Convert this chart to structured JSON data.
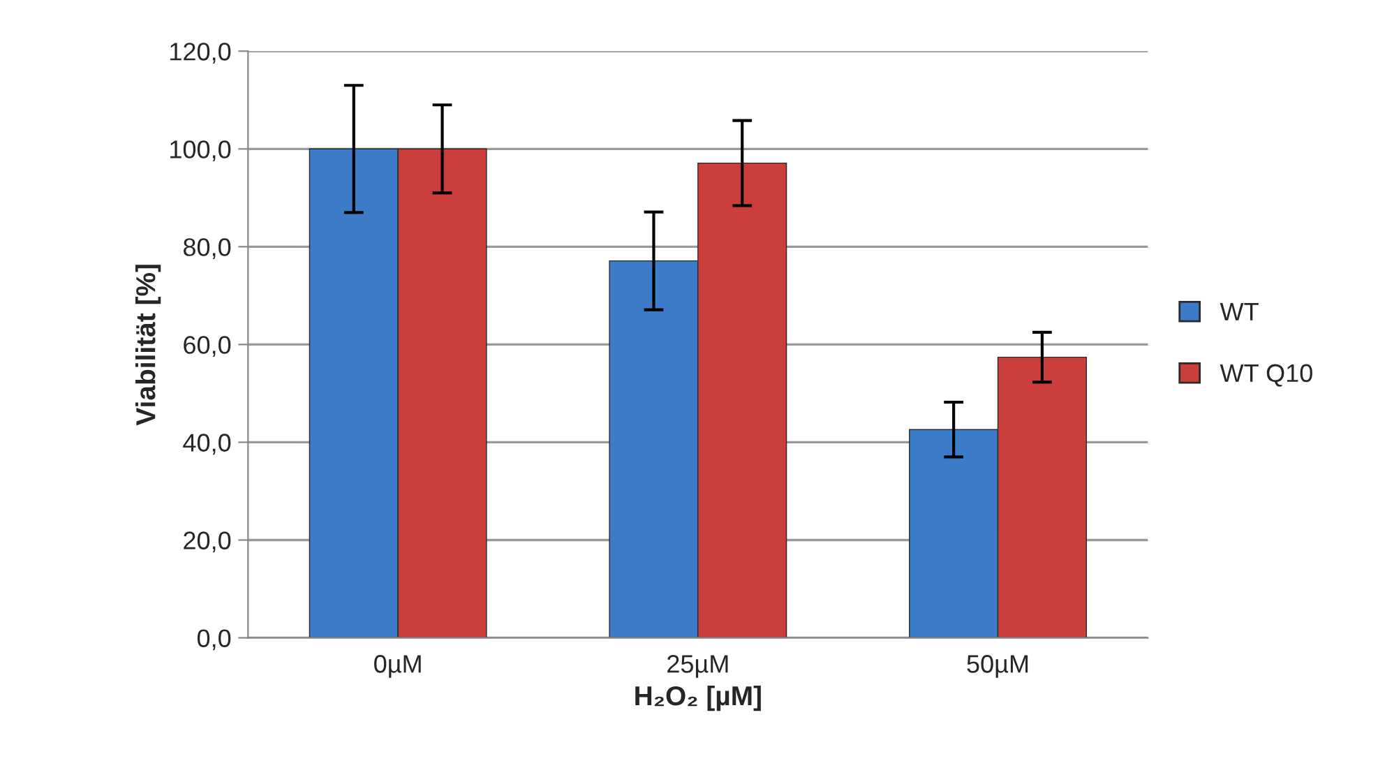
{
  "chart_data": {
    "type": "bar",
    "xlabel": "H₂O₂ [µM]",
    "ylabel": "Viabilität [%]",
    "categories": [
      "0µM",
      "25µM",
      "50µM"
    ],
    "series": [
      {
        "name": "WT",
        "color": "#3c7bc8",
        "values": [
          100.0,
          77.1,
          42.6
        ],
        "errors": [
          13.0,
          10.0,
          5.6
        ]
      },
      {
        "name": "WT Q10",
        "color": "#cc3e3b",
        "values": [
          100.0,
          97.1,
          57.4
        ],
        "errors": [
          9.0,
          8.7,
          5.1
        ]
      }
    ],
    "ylim": [
      0,
      120
    ],
    "yticks": [
      {
        "value": 0,
        "label": "0,0"
      },
      {
        "value": 20,
        "label": "20,0"
      },
      {
        "value": 40,
        "label": "40,0"
      },
      {
        "value": 60,
        "label": "60,0"
      },
      {
        "value": 80,
        "label": "80,0"
      },
      {
        "value": 100,
        "label": "100,0"
      },
      {
        "value": 120,
        "label": "120,0"
      }
    ],
    "grid": "y",
    "legend": "right"
  }
}
